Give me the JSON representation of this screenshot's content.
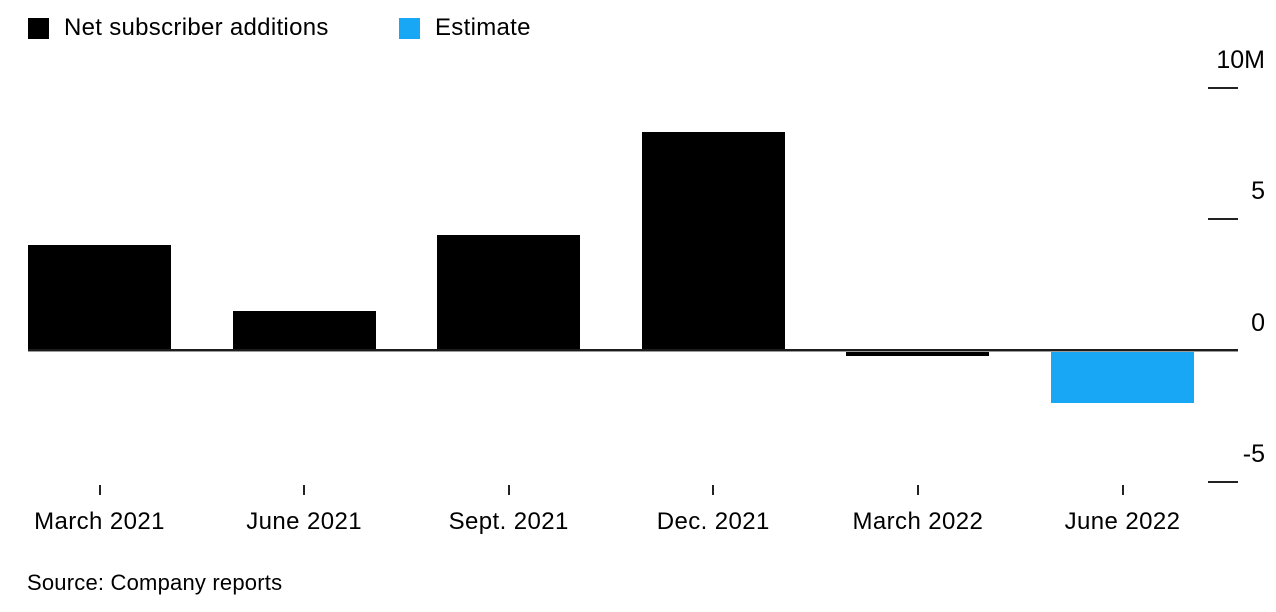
{
  "chart_data": {
    "type": "bar",
    "title": "",
    "xlabel": "",
    "ylabel": "",
    "unit": "millions of subscribers",
    "categories": [
      "March 2021",
      "June 2021",
      "Sept. 2021",
      "Dec. 2021",
      "March 2022",
      "June 2022"
    ],
    "series": [
      {
        "name": "Net subscriber additions",
        "color": "#000000",
        "values": [
          4.0,
          1.5,
          4.4,
          8.3,
          -0.2,
          null
        ]
      },
      {
        "name": "Estimate",
        "color": "#18a7f5",
        "values": [
          null,
          null,
          null,
          null,
          null,
          -2.0
        ]
      }
    ],
    "combined_values": [
      4.0,
      1.5,
      4.4,
      8.3,
      -0.2,
      -2.0
    ],
    "estimate_flags": [
      false,
      false,
      false,
      false,
      false,
      true
    ],
    "yticks": [
      {
        "value": 10,
        "label": "10M"
      },
      {
        "value": 5,
        "label": "5"
      },
      {
        "value": 0,
        "label": "0"
      },
      {
        "value": -5,
        "label": "-5"
      }
    ],
    "ylim": [
      -6.5,
      11.5
    ],
    "grid": false,
    "legend_position": "top-left",
    "zero_baseline": true
  },
  "legend": {
    "items": [
      {
        "label": "Net subscriber additions",
        "color": "#000000"
      },
      {
        "label": "Estimate",
        "color": "#18a7f5"
      }
    ]
  },
  "source": "Source: Company reports",
  "colors": {
    "actual_bar": "#000000",
    "estimate_bar": "#18a7f5",
    "axis_line": "#1c1c1c",
    "tick": "#222222",
    "background": "#ffffff",
    "text": "#000000"
  }
}
